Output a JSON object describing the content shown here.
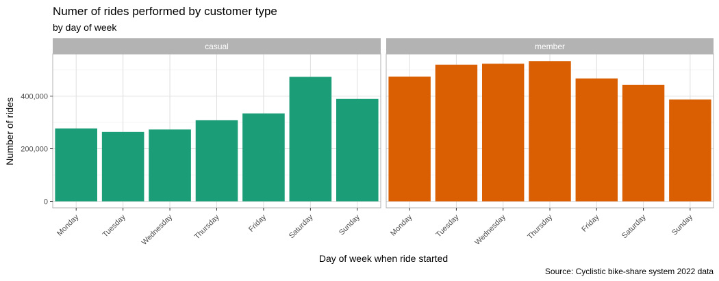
{
  "chart_data": {
    "type": "bar",
    "title": "Numer of rides performed by customer type",
    "subtitle": "by day of week",
    "xlabel": "Day of week when ride started",
    "ylabel": "Number of rides",
    "caption": "Source: Cyclistic bike-share system 2022 data",
    "categories": [
      "Monday",
      "Tuesday",
      "Wednesday",
      "Thursday",
      "Friday",
      "Saturday",
      "Sunday"
    ],
    "ylim": [
      0,
      560000
    ],
    "yticks": [
      0,
      200000,
      400000
    ],
    "ytick_labels": [
      "0",
      "200,000",
      "400,000"
    ],
    "grid": true,
    "legend": "none",
    "facets": [
      {
        "label": "casual",
        "color": "#1b9e77",
        "values": [
          277000,
          264000,
          273000,
          308000,
          334000,
          473000,
          389000
        ]
      },
      {
        "label": "member",
        "color": "#d95f02",
        "values": [
          474000,
          519000,
          523000,
          533000,
          467000,
          443000,
          387000
        ]
      }
    ]
  }
}
